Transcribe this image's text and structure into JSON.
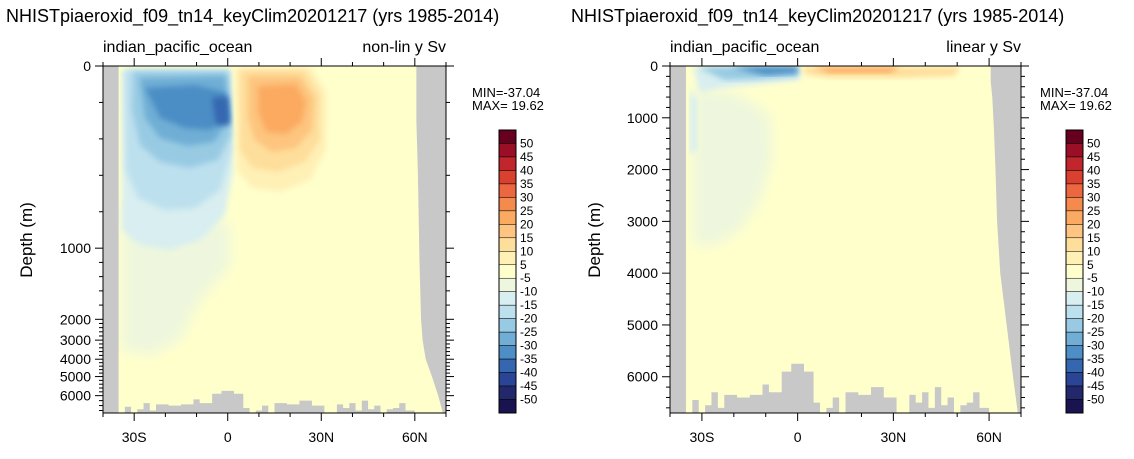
{
  "chart_data": [
    {
      "type": "heatmap",
      "title": "NHISTpiaeroxid_f09_tn14_keyClim20201217 (yrs 1985-2014)",
      "region": "indian_pacific_ocean",
      "subtitle_right": "non-lin y Sv",
      "ylabel": "Depth (m)",
      "y_scale": "non-linear",
      "x_ticks": [
        "30S",
        "0",
        "30N",
        "60N"
      ],
      "x_tick_values": [
        -30,
        0,
        30,
        60
      ],
      "xlim": [
        -40,
        70
      ],
      "y_ticks": [
        "0",
        "1000",
        "2000",
        "3000",
        "4000",
        "5000",
        "6000"
      ],
      "y_tick_values": [
        0,
        1000,
        2000,
        3000,
        4000,
        5000,
        6000
      ],
      "ylim": [
        0,
        6700
      ],
      "min_label": "MIN=-37.04",
      "max_label": "MAX= 19.62",
      "min": -37.04,
      "max": 19.62
    },
    {
      "type": "heatmap",
      "title": "NHISTpiaeroxid_f09_tn14_keyClim20201217 (yrs 1985-2014)",
      "region": "indian_pacific_ocean",
      "subtitle_right": "linear y Sv",
      "ylabel": "Depth (m)",
      "y_scale": "linear",
      "x_ticks": [
        "30S",
        "0",
        "30N",
        "60N"
      ],
      "x_tick_values": [
        -30,
        0,
        30,
        60
      ],
      "xlim": [
        -40,
        70
      ],
      "y_ticks": [
        "0",
        "1000",
        "2000",
        "3000",
        "4000",
        "5000",
        "6000"
      ],
      "y_tick_values": [
        0,
        1000,
        2000,
        3000,
        4000,
        5000,
        6000
      ],
      "ylim": [
        0,
        6700
      ],
      "min_label": "MIN=-37.04",
      "max_label": "MAX= 19.62",
      "min": -37.04,
      "max": 19.62
    }
  ],
  "colorbar": {
    "labels": [
      "50",
      "45",
      "40",
      "35",
      "30",
      "25",
      "20",
      "15",
      "10",
      "5",
      "-5",
      "-10",
      "-15",
      "-20",
      "-25",
      "-30",
      "-35",
      "-40",
      "-45",
      "-50"
    ],
    "colors": [
      "#67001f",
      "#9a0f25",
      "#c0262c",
      "#d9412e",
      "#ec6640",
      "#f58a4d",
      "#fbaa61",
      "#fdc57f",
      "#fede9b",
      "#fff0b6",
      "#ffffcc",
      "#eef7dd",
      "#d8eef0",
      "#bde0ee",
      "#98cbe3",
      "#70aed5",
      "#4c8ec5",
      "#3467b0",
      "#2a4595",
      "#23286d",
      "#19134f"
    ]
  },
  "colors": {
    "land": "#c8c8c8",
    "background_field": "#ffffcc"
  }
}
